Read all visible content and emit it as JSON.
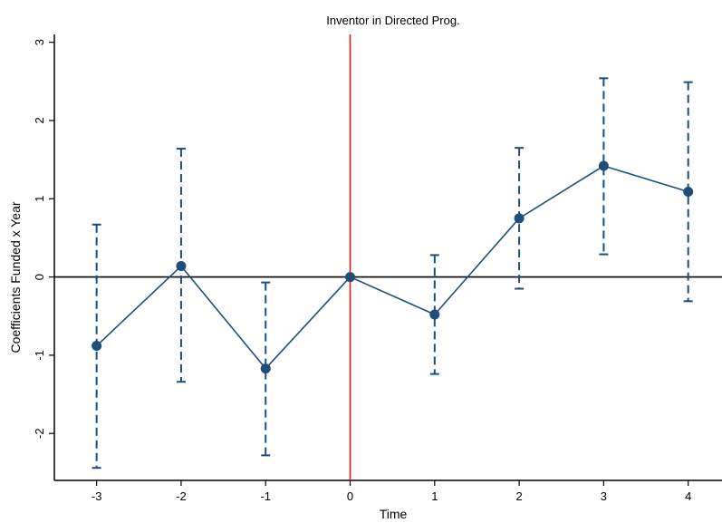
{
  "chart_data": {
    "type": "line",
    "title": "Inventor in Directed Prog.",
    "xlabel": "Time",
    "ylabel": "Coefficients Funded x Year",
    "x": [
      -3,
      -2,
      -1,
      0,
      1,
      2,
      3,
      4
    ],
    "x_tick_labels": [
      "-3",
      "-2",
      "-1",
      "0",
      "1",
      "2",
      "3",
      "4"
    ],
    "y_ticks": [
      -2,
      -1,
      0,
      1,
      2,
      3
    ],
    "y_tick_labels": [
      "-2",
      "-1",
      "0",
      "1",
      "2",
      "3"
    ],
    "xlim": [
      -3.5,
      4.4
    ],
    "ylim": [
      -2.6,
      3.1
    ],
    "series": [
      {
        "values": [
          -0.88,
          0.14,
          -1.17,
          0.0,
          -0.48,
          0.75,
          1.42,
          1.09
        ],
        "ci_lower": [
          -2.44,
          -1.34,
          -2.28,
          0.0,
          -1.24,
          -0.15,
          0.29,
          -0.31
        ],
        "ci_upper": [
          0.67,
          1.64,
          -0.07,
          0.0,
          0.28,
          1.65,
          2.54,
          2.49
        ]
      }
    ],
    "reference_lines": {
      "vertical_x": 0,
      "horizontal_y": 0
    },
    "colors": {
      "series": "#1f4e79",
      "vertical_line": "#e31a1c",
      "horizontal_line": "#000000"
    },
    "grid": false,
    "legend": "none"
  }
}
